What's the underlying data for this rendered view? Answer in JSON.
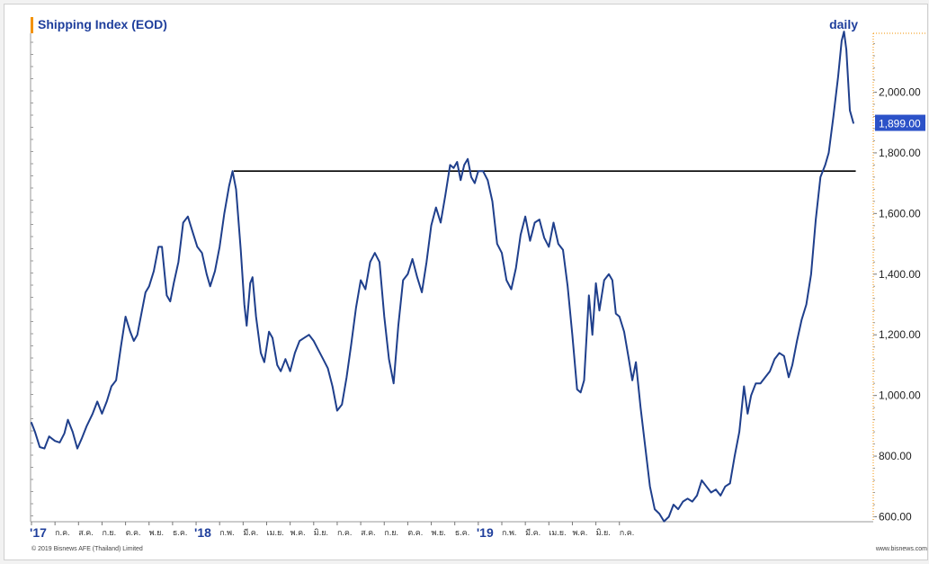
{
  "header": {
    "title": "Shipping Index (EOD)",
    "period": "daily"
  },
  "footer": {
    "copyright": "© 2019 Bisnews AFE (Thailand) Limited",
    "website": "www.bisnews.com"
  },
  "chart_data": {
    "type": "line",
    "title": "Shipping Index (EOD)",
    "period": "daily",
    "xlabel": "",
    "ylabel": "",
    "ylim": [
      580,
      2200
    ],
    "grid": false,
    "line_color": "#1f3f8c",
    "accent_color": "#f39200",
    "last_value_bg": "#2c52c8",
    "last_value_label": "1,899.00",
    "y_ticks": [
      {
        "value": 600,
        "label": "600.00"
      },
      {
        "value": 800,
        "label": "800.00"
      },
      {
        "value": 1000,
        "label": "1,000.00"
      },
      {
        "value": 1200,
        "label": "1,200.00"
      },
      {
        "value": 1400,
        "label": "1,400.00"
      },
      {
        "value": 1600,
        "label": "1,600.00"
      },
      {
        "value": 1800,
        "label": "1,800.00"
      },
      {
        "value": 2000,
        "label": "2,000.00"
      }
    ],
    "x_ticks": [
      {
        "month": 0,
        "label": "'17",
        "bold": true
      },
      {
        "month": 1,
        "label": "ก.ค.",
        "bold": false
      },
      {
        "month": 2,
        "label": "ส.ค.",
        "bold": false
      },
      {
        "month": 3,
        "label": "ก.ย.",
        "bold": false
      },
      {
        "month": 4,
        "label": "ต.ค.",
        "bold": false
      },
      {
        "month": 5,
        "label": "พ.ย.",
        "bold": false
      },
      {
        "month": 6,
        "label": "ธ.ค.",
        "bold": false
      },
      {
        "month": 7,
        "label": "'18",
        "bold": true
      },
      {
        "month": 8,
        "label": "ก.พ.",
        "bold": false
      },
      {
        "month": 9,
        "label": "มี.ค.",
        "bold": false
      },
      {
        "month": 10,
        "label": "เม.ย.",
        "bold": false
      },
      {
        "month": 11,
        "label": "พ.ค.",
        "bold": false
      },
      {
        "month": 12,
        "label": "มิ.ย.",
        "bold": false
      },
      {
        "month": 13,
        "label": "ก.ค.",
        "bold": false
      },
      {
        "month": 14,
        "label": "ส.ค.",
        "bold": false
      },
      {
        "month": 15,
        "label": "ก.ย.",
        "bold": false
      },
      {
        "month": 16,
        "label": "ต.ค.",
        "bold": false
      },
      {
        "month": 17,
        "label": "พ.ย.",
        "bold": false
      },
      {
        "month": 18,
        "label": "ธ.ค.",
        "bold": false
      },
      {
        "month": 19,
        "label": "'19",
        "bold": true
      },
      {
        "month": 20,
        "label": "ก.พ.",
        "bold": false
      },
      {
        "month": 21,
        "label": "มี.ค.",
        "bold": false
      },
      {
        "month": 22,
        "label": "เม.ย.",
        "bold": false
      },
      {
        "month": 23,
        "label": "พ.ค.",
        "bold": false
      },
      {
        "month": 24,
        "label": "มิ.ย.",
        "bold": false
      },
      {
        "month": 25,
        "label": "ก.ค.",
        "bold": false
      }
    ],
    "series": [
      {
        "values": [
          [
            0.0,
            910
          ],
          [
            0.15,
            880
          ],
          [
            0.35,
            830
          ],
          [
            0.55,
            825
          ],
          [
            0.75,
            865
          ],
          [
            1.0,
            850
          ],
          [
            1.2,
            845
          ],
          [
            1.4,
            875
          ],
          [
            1.55,
            920
          ],
          [
            1.75,
            880
          ],
          [
            1.95,
            825
          ],
          [
            2.15,
            860
          ],
          [
            2.35,
            900
          ],
          [
            2.6,
            940
          ],
          [
            2.8,
            980
          ],
          [
            3.0,
            940
          ],
          [
            3.2,
            980
          ],
          [
            3.4,
            1030
          ],
          [
            3.6,
            1050
          ],
          [
            3.8,
            1160
          ],
          [
            4.0,
            1260
          ],
          [
            4.2,
            1210
          ],
          [
            4.35,
            1180
          ],
          [
            4.5,
            1200
          ],
          [
            4.7,
            1280
          ],
          [
            4.85,
            1340
          ],
          [
            5.0,
            1360
          ],
          [
            5.2,
            1410
          ],
          [
            5.4,
            1490
          ],
          [
            5.55,
            1490
          ],
          [
            5.75,
            1330
          ],
          [
            5.9,
            1310
          ],
          [
            6.05,
            1370
          ],
          [
            6.25,
            1440
          ],
          [
            6.45,
            1570
          ],
          [
            6.65,
            1590
          ],
          [
            6.85,
            1540
          ],
          [
            7.05,
            1490
          ],
          [
            7.25,
            1470
          ],
          [
            7.45,
            1400
          ],
          [
            7.6,
            1360
          ],
          [
            7.8,
            1410
          ],
          [
            8.0,
            1490
          ],
          [
            8.2,
            1600
          ],
          [
            8.4,
            1690
          ],
          [
            8.55,
            1740
          ],
          [
            8.7,
            1680
          ],
          [
            8.9,
            1480
          ],
          [
            9.05,
            1300
          ],
          [
            9.15,
            1230
          ],
          [
            9.3,
            1370
          ],
          [
            9.4,
            1390
          ],
          [
            9.55,
            1260
          ],
          [
            9.75,
            1140
          ],
          [
            9.9,
            1110
          ],
          [
            10.1,
            1210
          ],
          [
            10.25,
            1190
          ],
          [
            10.45,
            1100
          ],
          [
            10.6,
            1080
          ],
          [
            10.8,
            1120
          ],
          [
            11.0,
            1080
          ],
          [
            11.2,
            1140
          ],
          [
            11.4,
            1180
          ],
          [
            11.6,
            1190
          ],
          [
            11.8,
            1200
          ],
          [
            12.0,
            1180
          ],
          [
            12.2,
            1150
          ],
          [
            12.4,
            1120
          ],
          [
            12.6,
            1090
          ],
          [
            12.8,
            1030
          ],
          [
            13.0,
            950
          ],
          [
            13.2,
            970
          ],
          [
            13.4,
            1060
          ],
          [
            13.6,
            1170
          ],
          [
            13.8,
            1290
          ],
          [
            14.0,
            1380
          ],
          [
            14.2,
            1350
          ],
          [
            14.4,
            1440
          ],
          [
            14.6,
            1470
          ],
          [
            14.8,
            1440
          ],
          [
            15.0,
            1260
          ],
          [
            15.2,
            1120
          ],
          [
            15.4,
            1040
          ],
          [
            15.6,
            1230
          ],
          [
            15.8,
            1380
          ],
          [
            16.0,
            1400
          ],
          [
            16.2,
            1450
          ],
          [
            16.4,
            1390
          ],
          [
            16.6,
            1340
          ],
          [
            16.8,
            1440
          ],
          [
            17.0,
            1560
          ],
          [
            17.2,
            1620
          ],
          [
            17.4,
            1570
          ],
          [
            17.6,
            1660
          ],
          [
            17.8,
            1760
          ],
          [
            17.95,
            1750
          ],
          [
            18.1,
            1770
          ],
          [
            18.25,
            1710
          ],
          [
            18.4,
            1760
          ],
          [
            18.55,
            1780
          ],
          [
            18.7,
            1720
          ],
          [
            18.85,
            1700
          ],
          [
            19.0,
            1740
          ],
          [
            19.2,
            1740
          ],
          [
            19.4,
            1710
          ],
          [
            19.6,
            1640
          ],
          [
            19.8,
            1500
          ],
          [
            20.0,
            1470
          ],
          [
            20.2,
            1380
          ],
          [
            20.4,
            1350
          ],
          [
            20.6,
            1420
          ],
          [
            20.8,
            1530
          ],
          [
            21.0,
            1590
          ],
          [
            21.2,
            1510
          ],
          [
            21.4,
            1570
          ],
          [
            21.6,
            1580
          ],
          [
            21.8,
            1520
          ],
          [
            22.0,
            1490
          ],
          [
            22.2,
            1570
          ],
          [
            22.4,
            1500
          ],
          [
            22.6,
            1480
          ],
          [
            22.8,
            1360
          ],
          [
            23.0,
            1200
          ],
          [
            23.2,
            1020
          ],
          [
            23.35,
            1010
          ],
          [
            23.5,
            1050
          ],
          [
            23.7,
            1330
          ],
          [
            23.85,
            1200
          ],
          [
            24.0,
            1370
          ],
          [
            24.15,
            1280
          ],
          [
            24.35,
            1380
          ],
          [
            24.55,
            1400
          ],
          [
            24.7,
            1380
          ],
          [
            24.85,
            1270
          ],
          [
            25.0,
            1260
          ],
          [
            25.2,
            1210
          ],
          [
            25.4,
            1120
          ],
          [
            25.55,
            1050
          ],
          [
            25.7,
            1110
          ],
          [
            25.9,
            960
          ],
          [
            26.1,
            830
          ],
          [
            26.3,
            700
          ],
          [
            26.5,
            625
          ],
          [
            26.7,
            610
          ],
          [
            26.9,
            585
          ],
          [
            27.1,
            600
          ],
          [
            27.3,
            640
          ],
          [
            27.5,
            625
          ],
          [
            27.7,
            650
          ],
          [
            27.9,
            660
          ],
          [
            28.1,
            650
          ],
          [
            28.3,
            670
          ],
          [
            28.5,
            720
          ],
          [
            28.7,
            700
          ],
          [
            28.9,
            680
          ],
          [
            29.1,
            690
          ],
          [
            29.3,
            670
          ],
          [
            29.5,
            700
          ],
          [
            29.7,
            710
          ],
          [
            29.9,
            800
          ],
          [
            30.1,
            880
          ],
          [
            30.3,
            1030
          ],
          [
            30.45,
            940
          ],
          [
            30.6,
            1000
          ],
          [
            30.8,
            1040
          ],
          [
            31.0,
            1040
          ],
          [
            31.2,
            1060
          ],
          [
            31.4,
            1080
          ],
          [
            31.6,
            1120
          ],
          [
            31.8,
            1140
          ],
          [
            32.0,
            1130
          ],
          [
            32.2,
            1060
          ],
          [
            32.35,
            1100
          ],
          [
            32.55,
            1180
          ],
          [
            32.75,
            1250
          ],
          [
            32.95,
            1300
          ],
          [
            33.15,
            1400
          ],
          [
            33.35,
            1580
          ],
          [
            33.55,
            1720
          ],
          [
            33.75,
            1760
          ],
          [
            33.9,
            1800
          ],
          [
            34.1,
            1920
          ],
          [
            34.3,
            2050
          ],
          [
            34.45,
            2170
          ],
          [
            34.55,
            2200
          ],
          [
            34.65,
            2140
          ],
          [
            34.8,
            1940
          ],
          [
            34.95,
            1899
          ]
        ]
      }
    ],
    "reference_line": {
      "value": 1740,
      "x_start": 8.6,
      "x_end": 35.05
    }
  }
}
